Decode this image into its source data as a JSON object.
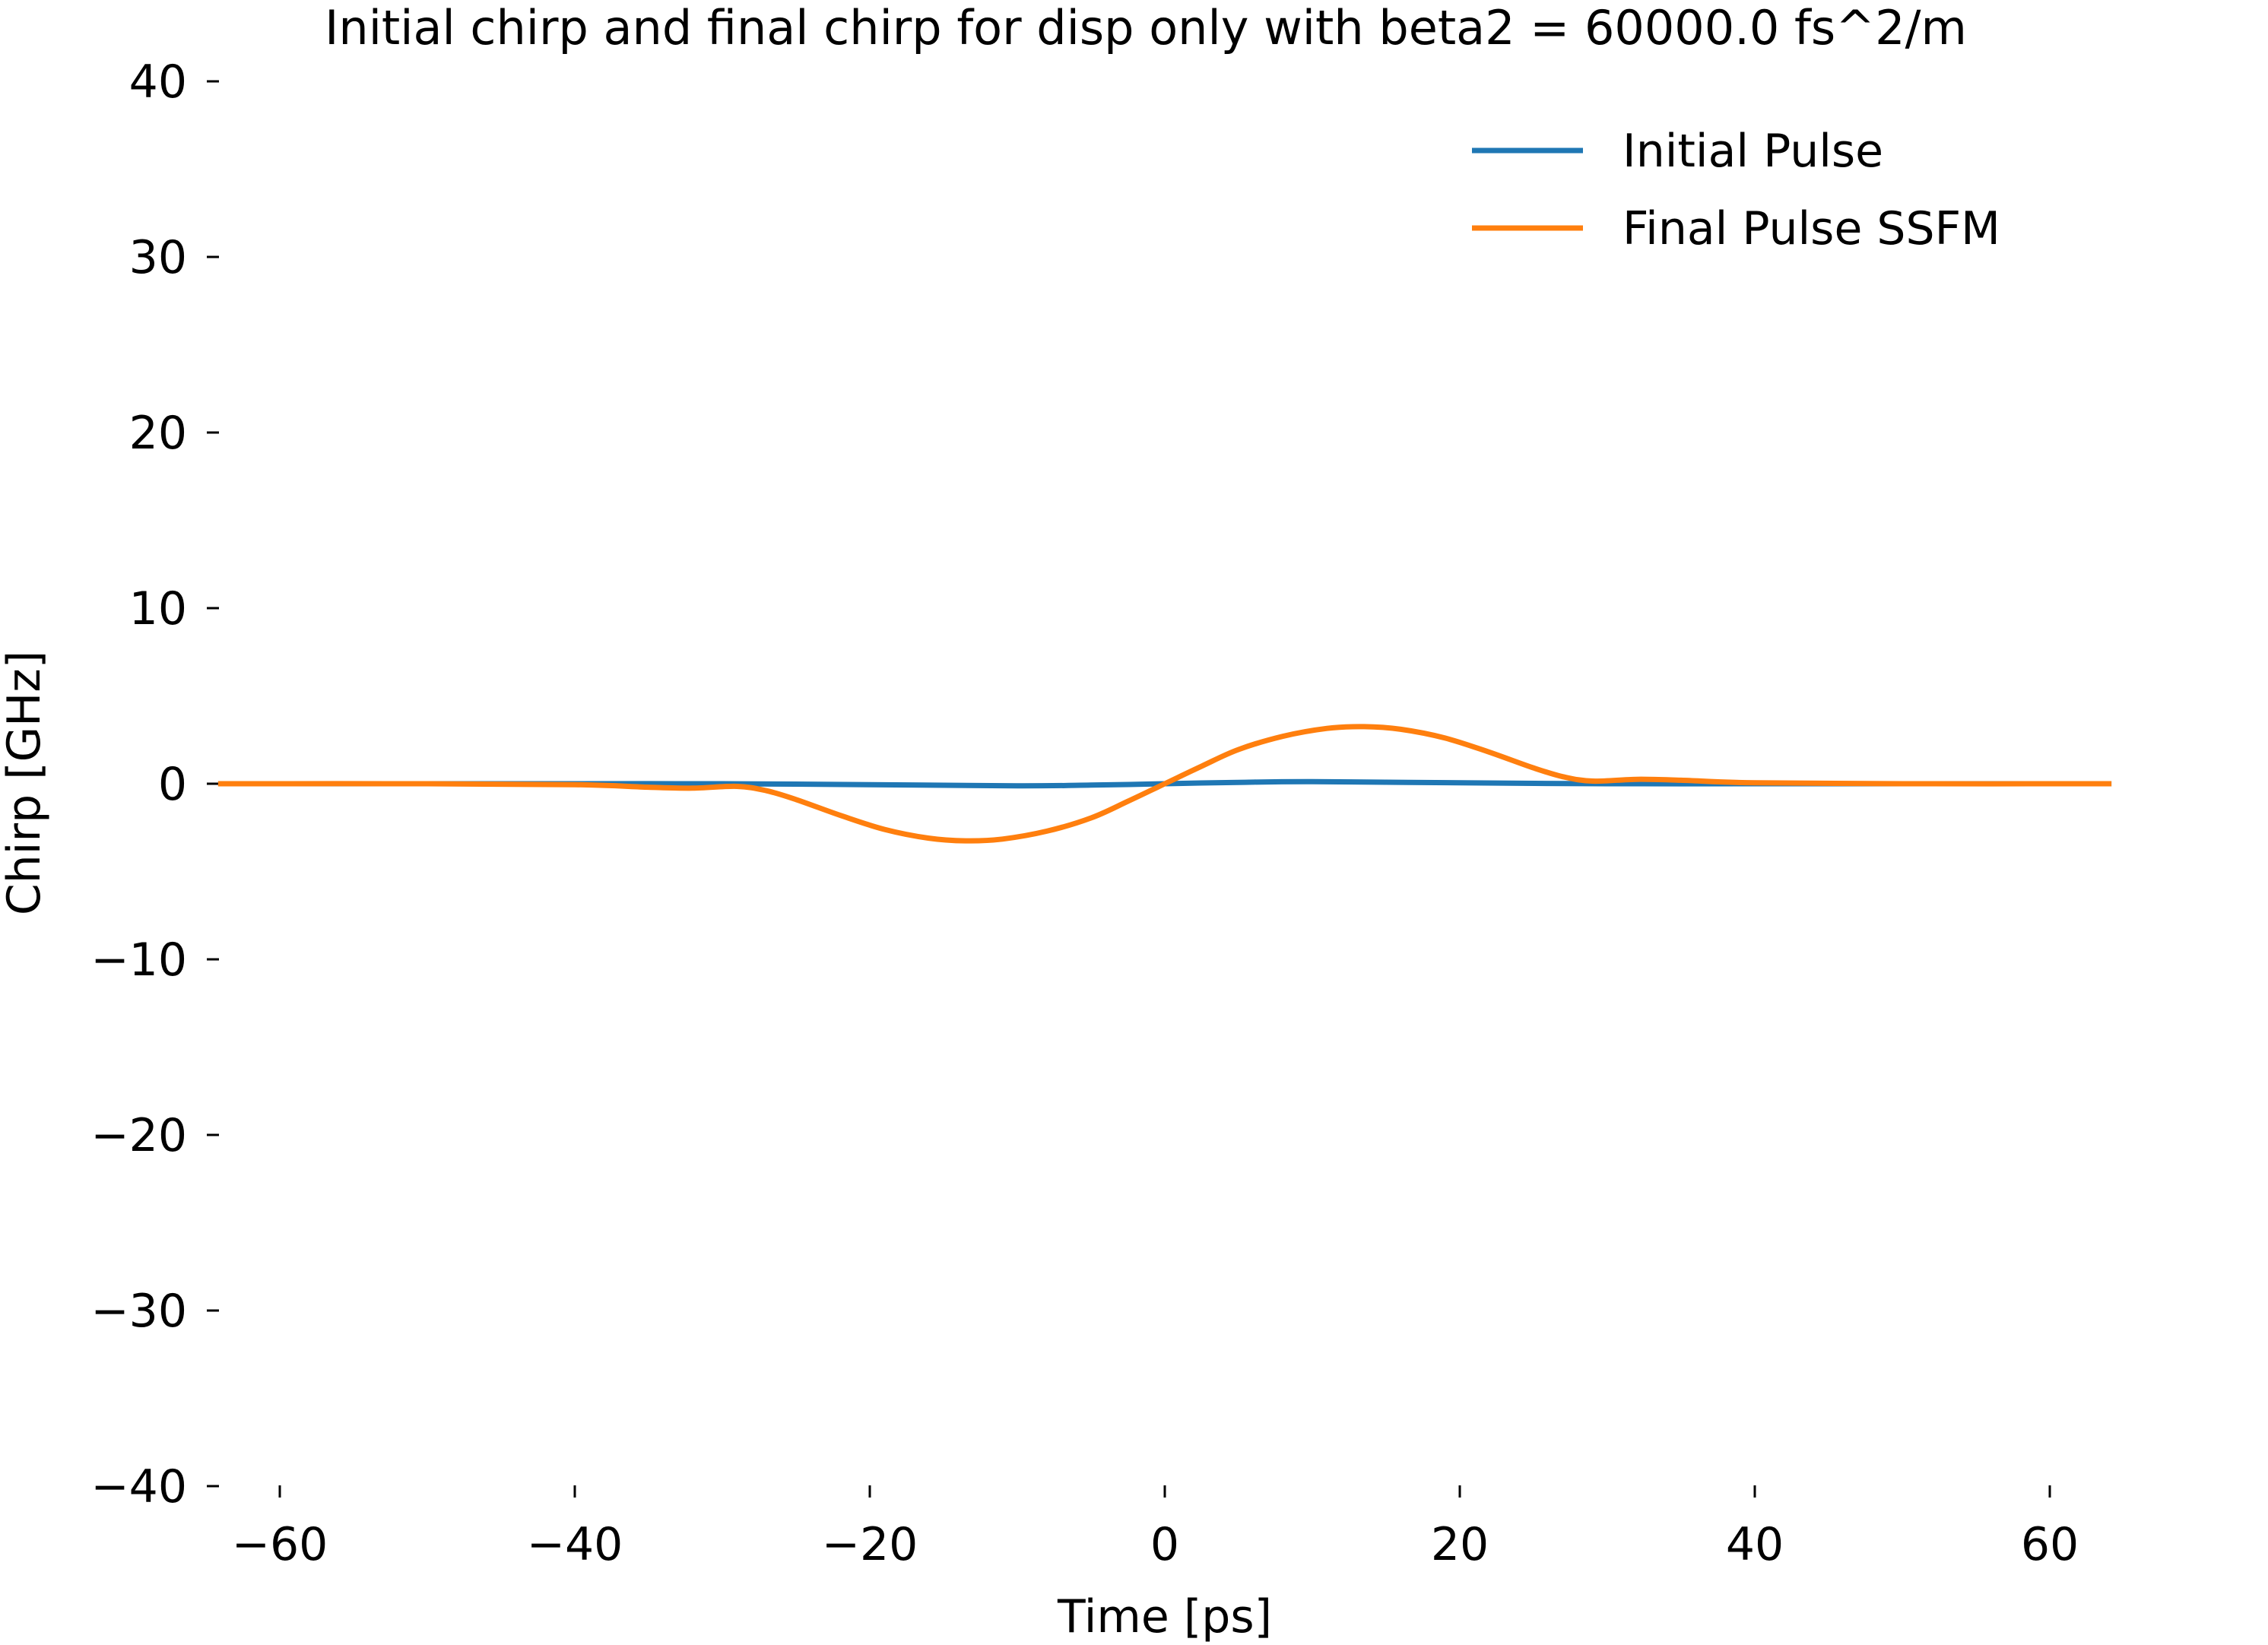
{
  "chart_data": {
    "type": "line",
    "title": "Initial chirp and final chirp for disp only with beta2 = 60000.0 fs^2/m",
    "xlabel": "Time [ps]",
    "ylabel": "Chirp [GHz]",
    "xlim": [
      -66,
      66
    ],
    "ylim": [
      -40,
      40
    ],
    "x_ticks": [
      -60,
      -40,
      -20,
      0,
      20,
      40,
      60
    ],
    "x_tick_labels": [
      "−60",
      "−40",
      "−20",
      "0",
      "20",
      "40",
      "60"
    ],
    "y_ticks": [
      40,
      30,
      20,
      10,
      0,
      -10,
      -20,
      -30,
      -40
    ],
    "y_tick_labels": [
      "40",
      "30",
      "20",
      "10",
      "0",
      "−10",
      "−20",
      "−30",
      "−40"
    ],
    "grid": false,
    "legend_position": "top-right",
    "series": [
      {
        "name": "Initial Pulse",
        "color": "#1f77b4",
        "points": [
          [
            -64,
            0.0
          ],
          [
            -50,
            0.0
          ],
          [
            -40,
            0.0
          ],
          [
            -30,
            0.0
          ],
          [
            -20,
            -0.05
          ],
          [
            -10,
            -0.12
          ],
          [
            -5,
            -0.08
          ],
          [
            0,
            0.0
          ],
          [
            5,
            0.08
          ],
          [
            10,
            0.12
          ],
          [
            20,
            0.05
          ],
          [
            30,
            0.0
          ],
          [
            40,
            0.0
          ],
          [
            50,
            0.0
          ],
          [
            64,
            0.0
          ]
        ]
      },
      {
        "name": "Final Pulse SSFM",
        "color": "#ff7f0e",
        "points": [
          [
            -64,
            0.0
          ],
          [
            -50,
            0.0
          ],
          [
            -40,
            -0.05
          ],
          [
            -35,
            -0.2
          ],
          [
            -32,
            -0.25
          ],
          [
            -29,
            -0.15
          ],
          [
            -27,
            -0.4
          ],
          [
            -25,
            -0.9
          ],
          [
            -22,
            -1.8
          ],
          [
            -19,
            -2.6
          ],
          [
            -16,
            -3.1
          ],
          [
            -13.5,
            -3.25
          ],
          [
            -11,
            -3.15
          ],
          [
            -8,
            -2.7
          ],
          [
            -5,
            -1.95
          ],
          [
            -2.5,
            -1.0
          ],
          [
            0,
            0.0
          ],
          [
            2.5,
            1.0
          ],
          [
            5,
            1.95
          ],
          [
            8,
            2.7
          ],
          [
            11,
            3.15
          ],
          [
            13.5,
            3.25
          ],
          [
            16,
            3.1
          ],
          [
            19,
            2.6
          ],
          [
            22,
            1.8
          ],
          [
            25,
            0.9
          ],
          [
            27,
            0.4
          ],
          [
            29,
            0.15
          ],
          [
            32,
            0.25
          ],
          [
            35,
            0.2
          ],
          [
            40,
            0.05
          ],
          [
            50,
            0.0
          ],
          [
            64,
            0.0
          ]
        ]
      }
    ]
  }
}
